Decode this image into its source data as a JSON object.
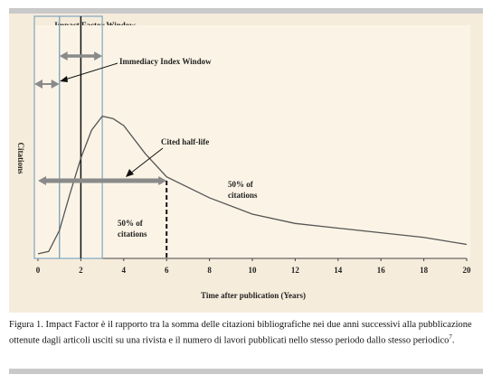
{
  "chart_data": {
    "type": "line",
    "title": "Impact Factor Window",
    "x_label": "Time after publication (Years)",
    "y_label": "Citations",
    "x": [
      0,
      0.5,
      1,
      1.5,
      2,
      2.5,
      3,
      3.5,
      4,
      5,
      6,
      8,
      10,
      12,
      14,
      16,
      18,
      20
    ],
    "values": [
      2,
      3,
      12,
      28,
      43,
      55,
      61,
      60,
      57,
      45,
      35,
      26,
      19,
      15,
      13,
      11,
      9,
      6
    ],
    "color": "#555555",
    "xlim": [
      0,
      20
    ],
    "xticks": [
      0,
      2,
      4,
      6,
      8,
      10,
      12,
      14,
      16,
      18,
      20
    ],
    "ylim": [
      0,
      100
    ],
    "impact_factor_window": [
      1,
      3
    ],
    "immediacy_index_window": [
      0,
      1
    ],
    "immediacy_label": "Immediacy Index Window",
    "cited_half_life": 6,
    "half_life_label": "Cited half-life",
    "left_share_label": [
      "50% of",
      "citations"
    ],
    "right_share_label": [
      "50% of",
      "citations"
    ]
  },
  "caption": {
    "text": "Figura 1. Impact Factor è il rapporto tra la somma delle citazioni bibliografiche nei due anni successivi alla pubblicazione ottenute dagli articoli usciti su una rivista e il numero di lavori pubblicati nello stesso periodo dallo stesso periodico",
    "note": "7",
    "end": "."
  }
}
